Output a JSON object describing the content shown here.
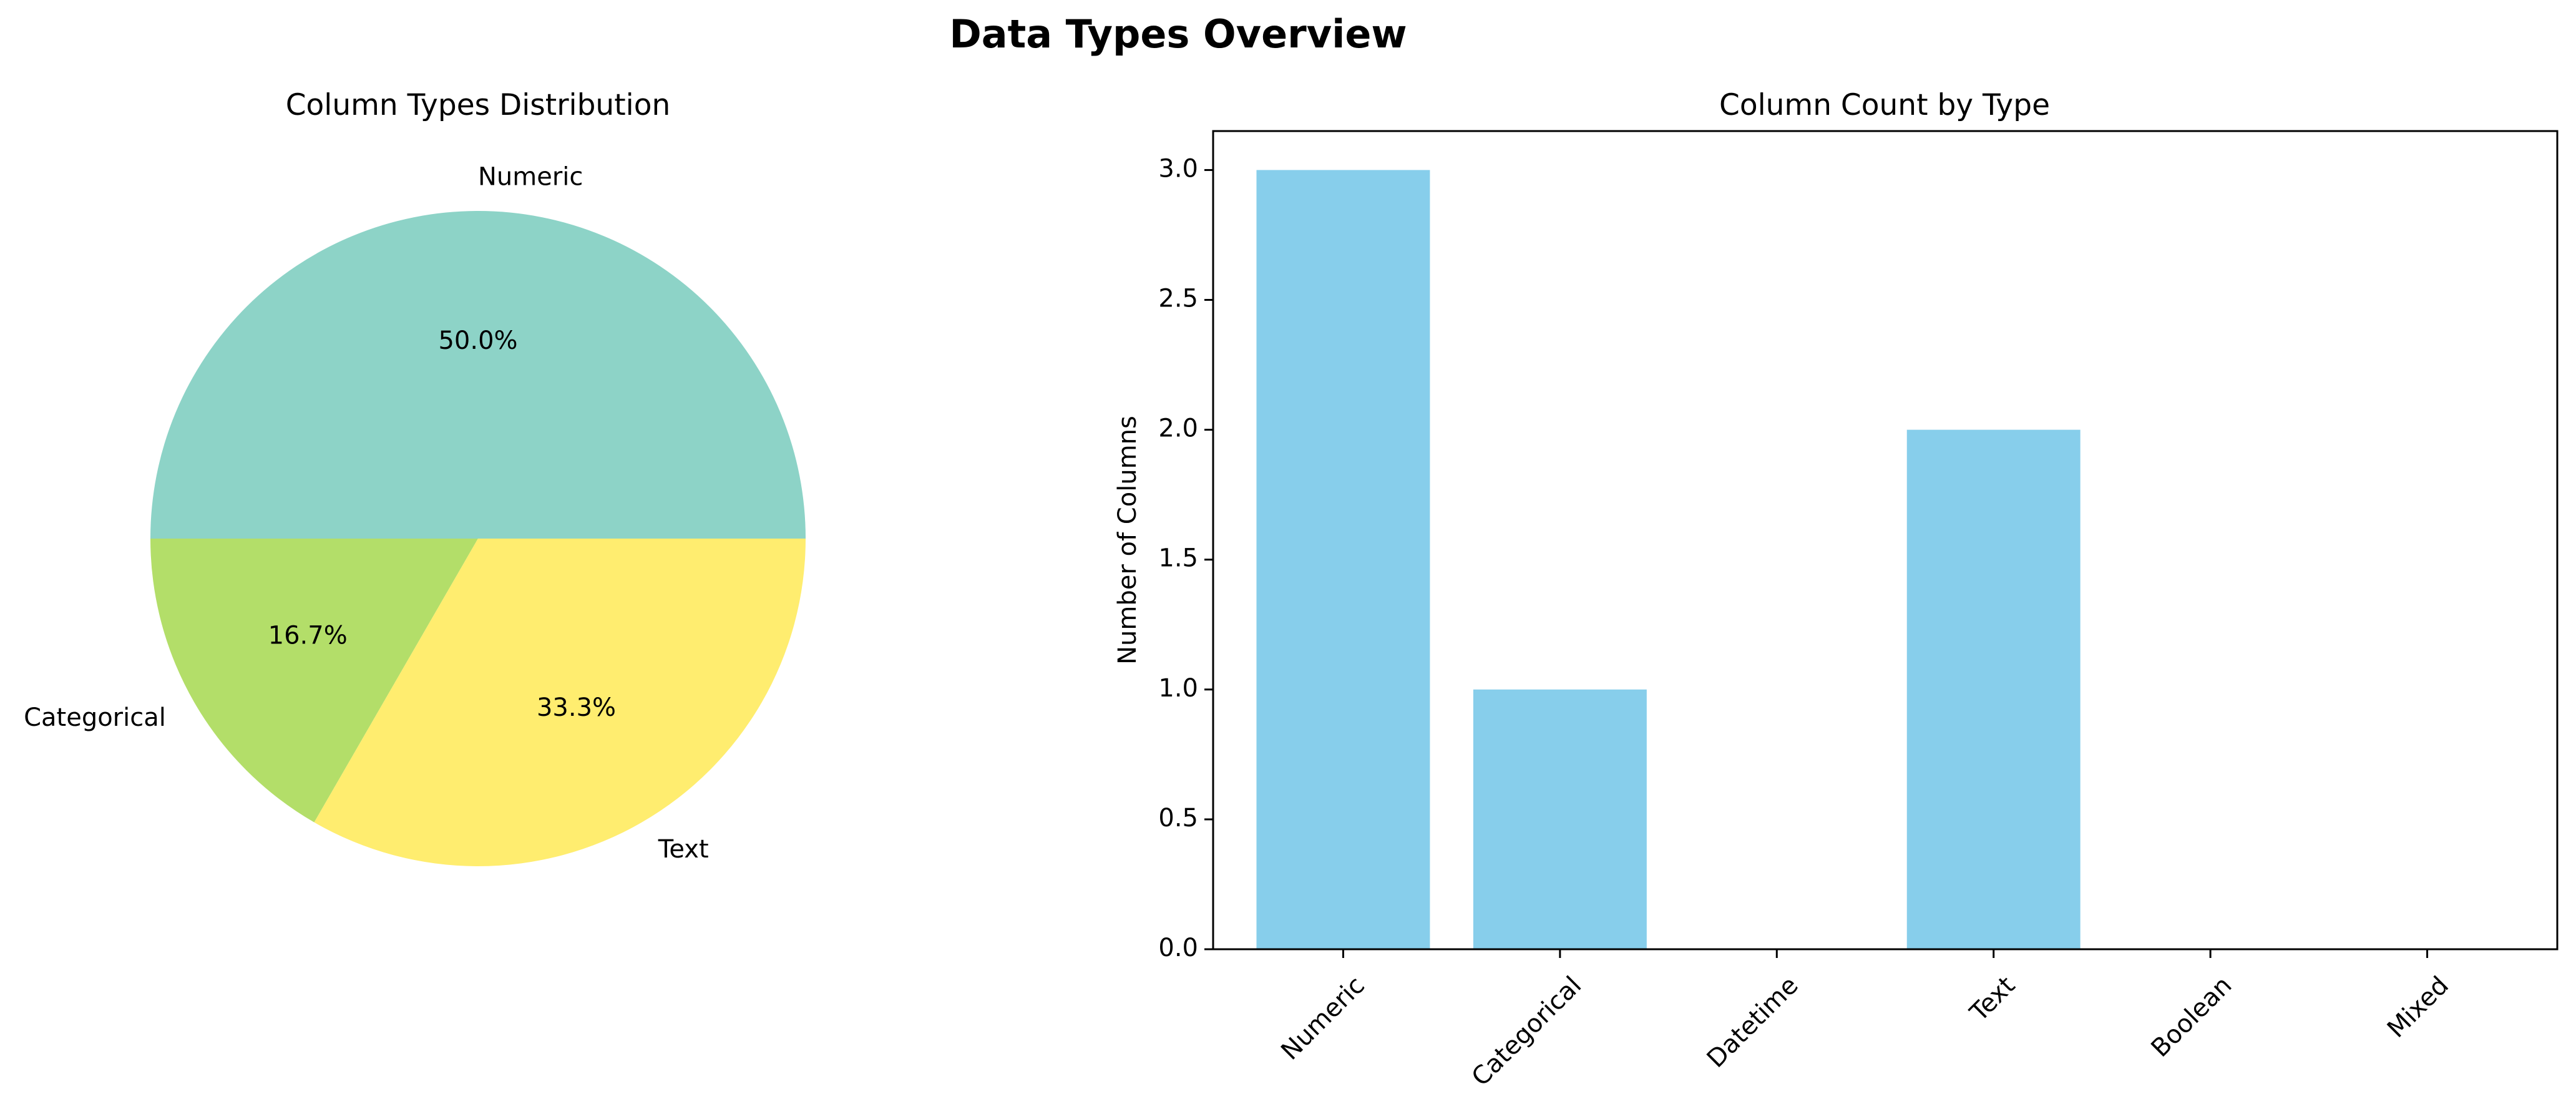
{
  "figure_title": "Data Types Overview",
  "chart_data": [
    {
      "type": "pie",
      "title": "Column Types Distribution",
      "labels": [
        "Numeric",
        "Categorical",
        "Text"
      ],
      "values": [
        3,
        1,
        2
      ],
      "percent_labels": [
        "50.0%",
        "16.7%",
        "33.3%"
      ],
      "colors": [
        "#8dd3c7",
        "#b3de69",
        "#ffed6f"
      ]
    },
    {
      "type": "bar",
      "title": "Column Count by Type",
      "categories": [
        "Numeric",
        "Categorical",
        "Datetime",
        "Text",
        "Boolean",
        "Mixed"
      ],
      "values": [
        3,
        1,
        0,
        2,
        0,
        0
      ],
      "ylabel": "Number of Columns",
      "xlabel": "",
      "ylim": [
        0,
        3.15
      ],
      "yticks": [
        "0.0",
        "0.5",
        "1.0",
        "1.5",
        "2.0",
        "2.5",
        "3.0"
      ],
      "color": "#87ceeb",
      "grid": false
    }
  ]
}
